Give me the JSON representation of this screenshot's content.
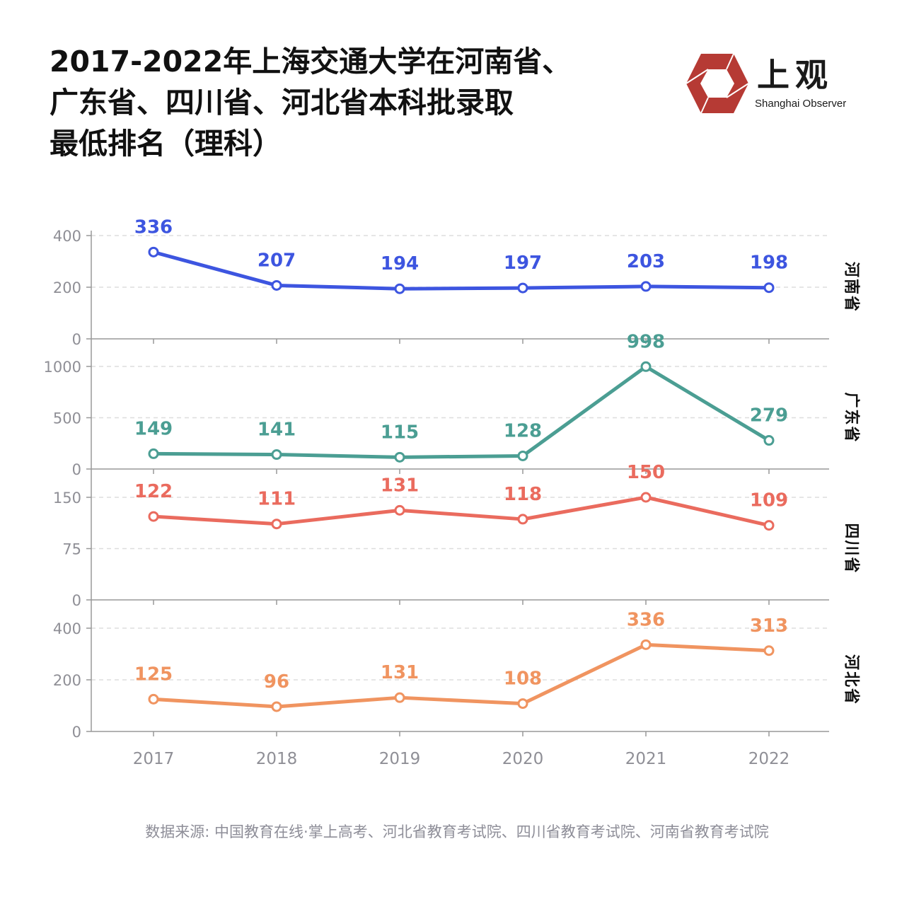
{
  "title_lines": [
    "2017-2022年上海交通大学在河南省、",
    "广东省、四川省、河北省本科批录取",
    "最低排名（理科）"
  ],
  "brand": {
    "name": "上观",
    "english": "Shanghai Observer",
    "logo_color": "#b63a34",
    "logo_icon": "hexagon-logo-icon"
  },
  "source": "数据来源: 中国教育在线·掌上高考、河北省教育考试院、四川省教育考试院、河南省教育考试院",
  "chart_data": {
    "type": "line",
    "x": [
      "2017",
      "2018",
      "2019",
      "2020",
      "2021",
      "2022"
    ],
    "grid": "horizontal-dashed",
    "panels": [
      {
        "name": "河南省",
        "color": "#3d55e0",
        "yticks": [
          "0",
          "200",
          "400"
        ],
        "ylim": [
          0,
          400
        ],
        "values": [
          336,
          207,
          194,
          197,
          203,
          198
        ]
      },
      {
        "name": "广东省",
        "color": "#4b9e93",
        "yticks": [
          "0",
          "500",
          "1000"
        ],
        "ylim": [
          0,
          1000
        ],
        "values": [
          149,
          141,
          115,
          128,
          998,
          279
        ]
      },
      {
        "name": "四川省",
        "color": "#ea6b5e",
        "yticks": [
          "0",
          "75",
          "150"
        ],
        "ylim": [
          0,
          150
        ],
        "values": [
          122,
          111,
          131,
          118,
          150,
          109
        ]
      },
      {
        "name": "河北省",
        "color": "#f09460",
        "yticks": [
          "0",
          "200",
          "400"
        ],
        "ylim": [
          0,
          400
        ],
        "values": [
          125,
          96,
          131,
          108,
          336,
          313
        ]
      }
    ]
  }
}
